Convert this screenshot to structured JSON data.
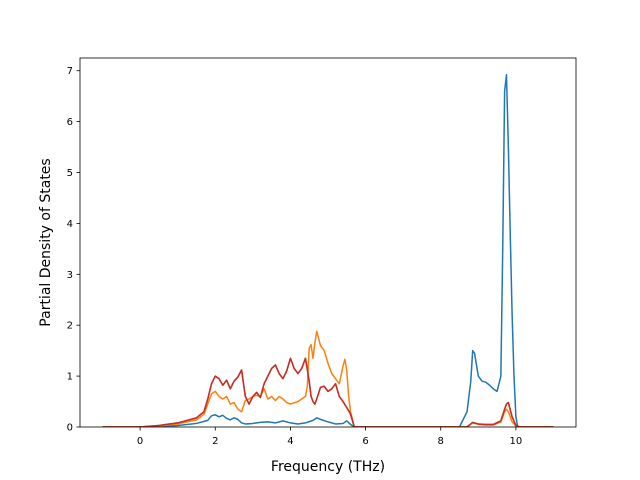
{
  "chart_data": {
    "type": "line",
    "title": "",
    "xlabel": "Frequency (THz)",
    "ylabel": "Partial Density of States",
    "xlim": [
      -1.6,
      11.6
    ],
    "ylim": [
      0,
      7.25
    ],
    "xticks": [
      0,
      2,
      4,
      6,
      8,
      10
    ],
    "xtick_labels": [
      "0",
      "2",
      "4",
      "6",
      "8",
      "10"
    ],
    "yticks": [
      0,
      1,
      2,
      3,
      4,
      5,
      6,
      7
    ],
    "ytick_labels": [
      "0",
      "1",
      "2",
      "3",
      "4",
      "5",
      "6",
      "7"
    ],
    "grid": false,
    "legend": "none",
    "series": [
      {
        "color": "#1f77b4",
        "x": [
          -1.0,
          0.0,
          0.5,
          1.0,
          1.5,
          1.8,
          1.9,
          2.0,
          2.1,
          2.2,
          2.3,
          2.4,
          2.5,
          2.6,
          2.7,
          2.8,
          3.0,
          3.2,
          3.4,
          3.6,
          3.8,
          4.0,
          4.2,
          4.4,
          4.6,
          4.7,
          4.8,
          5.0,
          5.2,
          5.4,
          5.5,
          5.6,
          5.7,
          6.0,
          7.0,
          8.0,
          8.5,
          8.7,
          8.8,
          8.85,
          8.9,
          9.0,
          9.1,
          9.2,
          9.3,
          9.4,
          9.5,
          9.6,
          9.65,
          9.7,
          9.75,
          9.8,
          9.85,
          9.9,
          9.95,
          10.0,
          10.05,
          10.1,
          11.0
        ],
        "y": [
          0,
          0,
          0.01,
          0.03,
          0.07,
          0.13,
          0.22,
          0.24,
          0.2,
          0.23,
          0.17,
          0.14,
          0.18,
          0.15,
          0.08,
          0.06,
          0.07,
          0.09,
          0.1,
          0.08,
          0.12,
          0.08,
          0.06,
          0.08,
          0.13,
          0.18,
          0.15,
          0.1,
          0.06,
          0.07,
          0.12,
          0.05,
          0.0,
          0,
          0,
          0,
          0,
          0.3,
          0.9,
          1.5,
          1.45,
          1.0,
          0.9,
          0.88,
          0.82,
          0.75,
          0.7,
          1.0,
          3.5,
          6.6,
          6.92,
          5.5,
          3.8,
          2.2,
          1.0,
          0.2,
          0,
          0,
          0
        ]
      },
      {
        "color": "#ff7f0e",
        "x": [
          -1.0,
          0.0,
          0.5,
          1.0,
          1.5,
          1.7,
          1.8,
          1.9,
          2.0,
          2.1,
          2.2,
          2.3,
          2.4,
          2.5,
          2.6,
          2.7,
          2.8,
          2.9,
          3.0,
          3.1,
          3.2,
          3.3,
          3.4,
          3.5,
          3.6,
          3.7,
          3.8,
          3.9,
          4.0,
          4.2,
          4.3,
          4.4,
          4.45,
          4.5,
          4.55,
          4.6,
          4.65,
          4.7,
          4.8,
          4.9,
          5.0,
          5.1,
          5.2,
          5.3,
          5.4,
          5.45,
          5.5,
          5.55,
          5.6,
          5.7,
          6.0,
          7.0,
          8.0,
          8.7,
          8.8,
          8.85,
          8.9,
          9.0,
          9.2,
          9.4,
          9.6,
          9.7,
          9.75,
          9.8,
          9.9,
          10.0,
          10.1,
          11.0
        ],
        "y": [
          0,
          0,
          0.02,
          0.06,
          0.14,
          0.25,
          0.45,
          0.65,
          0.7,
          0.6,
          0.55,
          0.6,
          0.45,
          0.48,
          0.35,
          0.3,
          0.52,
          0.55,
          0.6,
          0.62,
          0.6,
          0.75,
          0.55,
          0.6,
          0.52,
          0.6,
          0.55,
          0.48,
          0.45,
          0.5,
          0.55,
          0.6,
          0.8,
          1.55,
          1.62,
          1.35,
          1.65,
          1.88,
          1.6,
          1.5,
          1.25,
          1.05,
          0.95,
          0.85,
          1.2,
          1.33,
          1.1,
          0.6,
          0.3,
          0.0,
          0,
          0,
          0,
          0,
          0.06,
          0.08,
          0.07,
          0.05,
          0.04,
          0.04,
          0.1,
          0.3,
          0.35,
          0.3,
          0.1,
          0.02,
          0,
          0
        ]
      },
      {
        "color": "#2ca02c",
        "x": [
          -1.0,
          0.0,
          0.5,
          1.0,
          1.5,
          1.7,
          1.8,
          1.9,
          2.0,
          2.1,
          2.2,
          2.3,
          2.4,
          2.5,
          2.6,
          2.7,
          2.8,
          2.9,
          3.0,
          3.1,
          3.2,
          3.3,
          3.4,
          3.5,
          3.6,
          3.7,
          3.8,
          3.9,
          4.0,
          4.1,
          4.2,
          4.3,
          4.4,
          4.5,
          4.55,
          4.6,
          4.65,
          4.7,
          4.8,
          4.9,
          5.0,
          5.1,
          5.2,
          5.3,
          5.4,
          5.5,
          5.55,
          5.6,
          5.7,
          6.0,
          7.0,
          8.0,
          8.7,
          8.8,
          8.85,
          8.9,
          9.0,
          9.2,
          9.4,
          9.6,
          9.7,
          9.75,
          9.8,
          9.9,
          10.0,
          10.1,
          11.0
        ],
        "y": [
          0,
          0,
          0.03,
          0.08,
          0.18,
          0.3,
          0.55,
          0.85,
          1.0,
          0.95,
          0.82,
          0.92,
          0.75,
          0.9,
          0.98,
          1.12,
          0.6,
          0.45,
          0.6,
          0.68,
          0.58,
          0.85,
          1.0,
          1.15,
          1.22,
          1.05,
          0.95,
          1.1,
          1.35,
          1.15,
          1.05,
          1.15,
          1.35,
          0.9,
          0.6,
          0.5,
          0.45,
          0.55,
          0.78,
          0.8,
          0.7,
          0.75,
          0.85,
          0.6,
          0.5,
          0.38,
          0.32,
          0.25,
          0.0,
          0,
          0,
          0,
          0,
          0.06,
          0.09,
          0.08,
          0.06,
          0.05,
          0.05,
          0.12,
          0.35,
          0.45,
          0.48,
          0.2,
          0.03,
          0,
          0
        ]
      },
      {
        "color": "#d62728",
        "x": [
          -1.0,
          0.0,
          0.5,
          1.0,
          1.5,
          1.7,
          1.8,
          1.9,
          2.0,
          2.1,
          2.2,
          2.3,
          2.4,
          2.5,
          2.6,
          2.7,
          2.8,
          2.9,
          3.0,
          3.1,
          3.2,
          3.3,
          3.4,
          3.5,
          3.6,
          3.7,
          3.8,
          3.9,
          4.0,
          4.1,
          4.2,
          4.3,
          4.4,
          4.5,
          4.55,
          4.6,
          4.65,
          4.7,
          4.8,
          4.9,
          5.0,
          5.1,
          5.2,
          5.3,
          5.4,
          5.5,
          5.55,
          5.6,
          5.7,
          6.0,
          7.0,
          8.0,
          8.7,
          8.8,
          8.85,
          8.9,
          9.0,
          9.2,
          9.4,
          9.6,
          9.7,
          9.75,
          9.8,
          9.9,
          10.0,
          10.1,
          11.0
        ],
        "y": [
          0,
          0,
          0.03,
          0.08,
          0.18,
          0.3,
          0.55,
          0.85,
          1.0,
          0.95,
          0.82,
          0.92,
          0.75,
          0.9,
          0.98,
          1.12,
          0.6,
          0.45,
          0.6,
          0.68,
          0.58,
          0.85,
          1.0,
          1.15,
          1.22,
          1.05,
          0.95,
          1.1,
          1.35,
          1.15,
          1.05,
          1.15,
          1.35,
          0.9,
          0.6,
          0.5,
          0.45,
          0.55,
          0.78,
          0.8,
          0.7,
          0.75,
          0.85,
          0.6,
          0.5,
          0.38,
          0.32,
          0.25,
          0.0,
          0,
          0,
          0,
          0,
          0.06,
          0.09,
          0.08,
          0.06,
          0.05,
          0.05,
          0.12,
          0.35,
          0.45,
          0.48,
          0.2,
          0.03,
          0,
          0
        ]
      }
    ]
  }
}
